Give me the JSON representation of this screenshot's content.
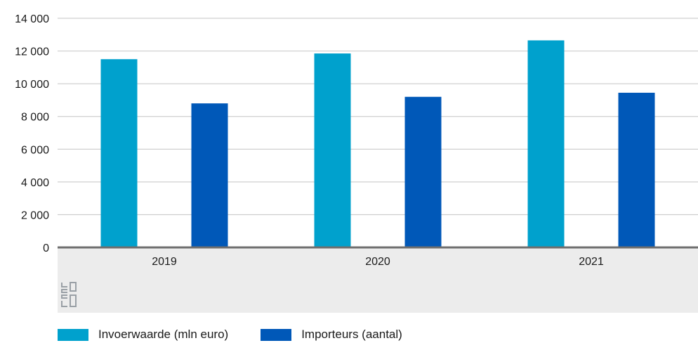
{
  "chart_data": {
    "type": "bar",
    "categories": [
      "2019",
      "2020",
      "2021"
    ],
    "series": [
      {
        "name": "Invoerwaarde (mln euro)",
        "color": "#00a1cd",
        "values": [
          11500,
          11850,
          12650
        ]
      },
      {
        "name": "Importeurs (aantal)",
        "color": "#0058b8",
        "values": [
          8800,
          9200,
          9450
        ]
      }
    ],
    "yticks": [
      "0",
      "2 000",
      "4 000",
      "6 000",
      "8 000",
      "10 000",
      "12 000",
      "14 000"
    ],
    "ytick_values": [
      0,
      2000,
      4000,
      6000,
      8000,
      10000,
      12000,
      14000
    ],
    "ylim": [
      0,
      14000
    ],
    "grid": true,
    "legend_position": "bottom-left",
    "title": "",
    "xlabel": "",
    "ylabel": ""
  },
  "logo": {
    "icon": "cbs-logo-icon",
    "color": "#9aa0a6"
  }
}
